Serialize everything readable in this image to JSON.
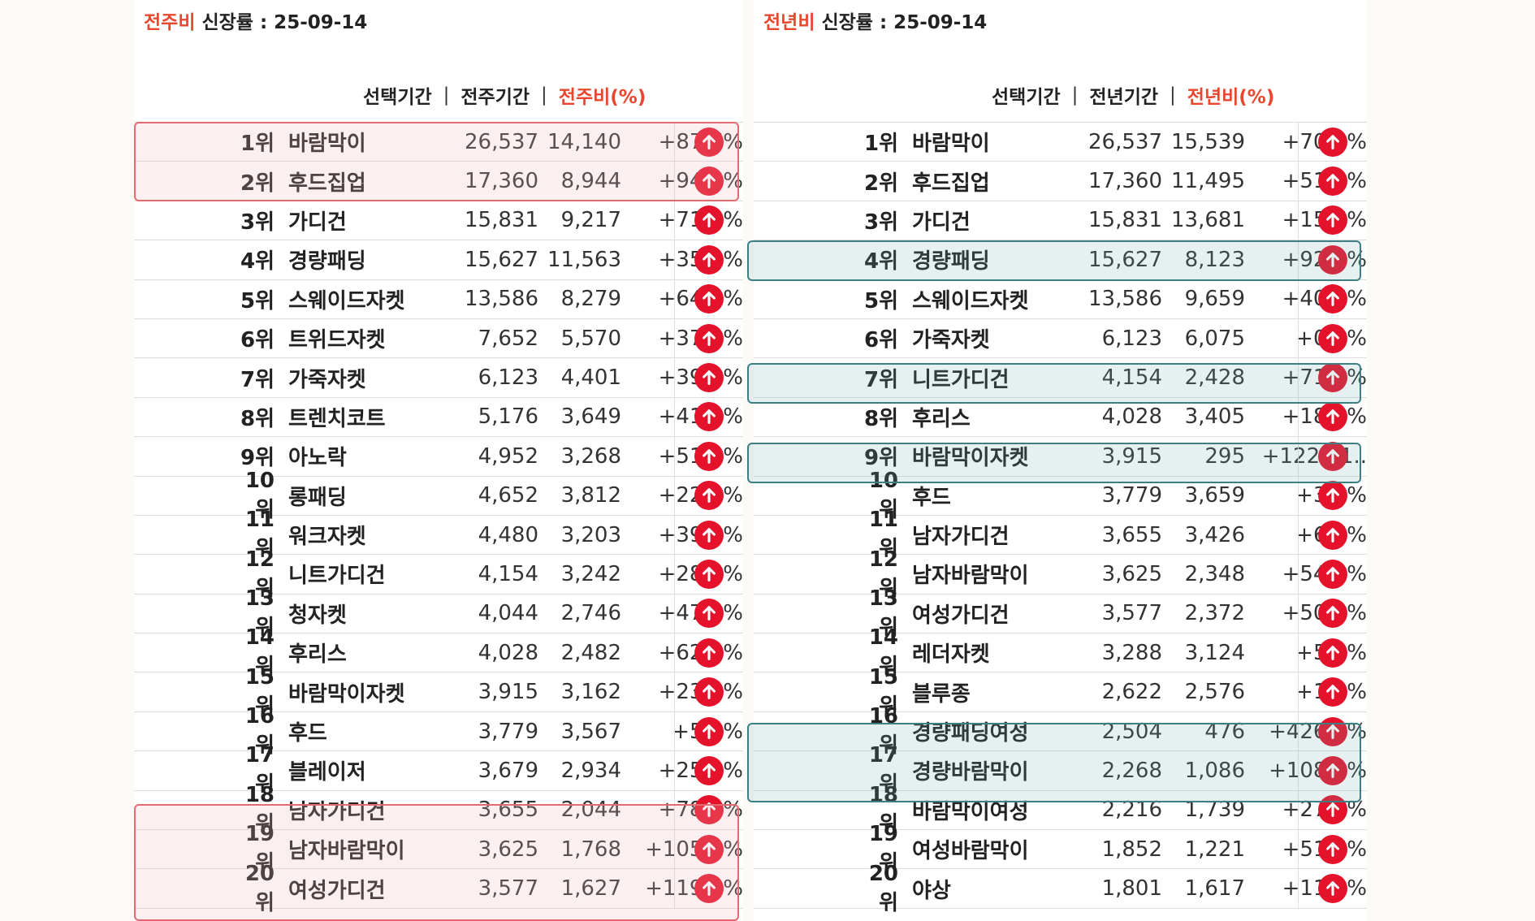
{
  "left": {
    "title_prefix": "전주비",
    "title_rest": " 신장률 : 25-09-14",
    "headers": {
      "cur": "선택기간",
      "prev": "전주기간",
      "pct": "전주비(%)"
    },
    "rows": [
      {
        "rank": "1위",
        "name": "바람막이",
        "cur": "26,537",
        "prev": "14,140",
        "pct": "+87.7%"
      },
      {
        "rank": "2위",
        "name": "후드집업",
        "cur": "17,360",
        "prev": "8,944",
        "pct": "+94.1%"
      },
      {
        "rank": "3위",
        "name": "가디건",
        "cur": "15,831",
        "prev": "9,217",
        "pct": "+71.8%"
      },
      {
        "rank": "4위",
        "name": "경량패딩",
        "cur": "15,627",
        "prev": "11,563",
        "pct": "+35.1%"
      },
      {
        "rank": "5위",
        "name": "스웨이드자켓",
        "cur": "13,586",
        "prev": "8,279",
        "pct": "+64.1%"
      },
      {
        "rank": "6위",
        "name": "트위드자켓",
        "cur": "7,652",
        "prev": "5,570",
        "pct": "+37.4%"
      },
      {
        "rank": "7위",
        "name": "가죽자켓",
        "cur": "6,123",
        "prev": "4,401",
        "pct": "+39.1%"
      },
      {
        "rank": "8위",
        "name": "트렌치코트",
        "cur": "5,176",
        "prev": "3,649",
        "pct": "+41.8%"
      },
      {
        "rank": "9위",
        "name": "아노락",
        "cur": "4,952",
        "prev": "3,268",
        "pct": "+51.5%"
      },
      {
        "rank": "10위",
        "name": "롱패딩",
        "cur": "4,652",
        "prev": "3,812",
        "pct": "+22.0%"
      },
      {
        "rank": "11위",
        "name": "워크자켓",
        "cur": "4,480",
        "prev": "3,203",
        "pct": "+39.9%"
      },
      {
        "rank": "12위",
        "name": "니트가디건",
        "cur": "4,154",
        "prev": "3,242",
        "pct": "+28.1%"
      },
      {
        "rank": "13위",
        "name": "청자켓",
        "cur": "4,044",
        "prev": "2,746",
        "pct": "+47.3%"
      },
      {
        "rank": "14위",
        "name": "후리스",
        "cur": "4,028",
        "prev": "2,482",
        "pct": "+62.3%"
      },
      {
        "rank": "15위",
        "name": "바람막이자켓",
        "cur": "3,915",
        "prev": "3,162",
        "pct": "+23.8%"
      },
      {
        "rank": "16위",
        "name": "후드",
        "cur": "3,779",
        "prev": "3,567",
        "pct": "+5.9%"
      },
      {
        "rank": "17위",
        "name": "블레이저",
        "cur": "3,679",
        "prev": "2,934",
        "pct": "+25.4%"
      },
      {
        "rank": "18위",
        "name": "남자가디건",
        "cur": "3,655",
        "prev": "2,044",
        "pct": "+78.8%"
      },
      {
        "rank": "19위",
        "name": "남자바람막이",
        "cur": "3,625",
        "prev": "1,768",
        "pct": "+105.0%"
      },
      {
        "rank": "20위",
        "name": "여성가디건",
        "cur": "3,577",
        "prev": "1,627",
        "pct": "+119.9%"
      }
    ]
  },
  "right": {
    "title_prefix": "전년비",
    "title_rest": " 신장률 : 25-09-14",
    "headers": {
      "cur": "선택기간",
      "prev": "전년기간",
      "pct": "전년비(%)"
    },
    "rows": [
      {
        "rank": "1위",
        "name": "바람막이",
        "cur": "26,537",
        "prev": "15,539",
        "pct": "+70.8%"
      },
      {
        "rank": "2위",
        "name": "후드집업",
        "cur": "17,360",
        "prev": "11,495",
        "pct": "+51.0%"
      },
      {
        "rank": "3위",
        "name": "가디건",
        "cur": "15,831",
        "prev": "13,681",
        "pct": "+15.7%"
      },
      {
        "rank": "4위",
        "name": "경량패딩",
        "cur": "15,627",
        "prev": "8,123",
        "pct": "+92.4%"
      },
      {
        "rank": "5위",
        "name": "스웨이드자켓",
        "cur": "13,586",
        "prev": "9,659",
        "pct": "+40.7%"
      },
      {
        "rank": "6위",
        "name": "가죽자켓",
        "cur": "6,123",
        "prev": "6,075",
        "pct": "+0.8%"
      },
      {
        "rank": "7위",
        "name": "니트가디건",
        "cur": "4,154",
        "prev": "2,428",
        "pct": "+71.1%"
      },
      {
        "rank": "8위",
        "name": "후리스",
        "cur": "4,028",
        "prev": "3,405",
        "pct": "+18.3%"
      },
      {
        "rank": "9위",
        "name": "바람막이자켓",
        "cur": "3,915",
        "prev": "295",
        "pct": "+1227.1.."
      },
      {
        "rank": "10위",
        "name": "후드",
        "cur": "3,779",
        "prev": "3,659",
        "pct": "+3.3%"
      },
      {
        "rank": "11위",
        "name": "남자가디건",
        "cur": "3,655",
        "prev": "3,426",
        "pct": "+6.7%"
      },
      {
        "rank": "12위",
        "name": "남자바람막이",
        "cur": "3,625",
        "prev": "2,348",
        "pct": "+54.4%"
      },
      {
        "rank": "13위",
        "name": "여성가디건",
        "cur": "3,577",
        "prev": "2,372",
        "pct": "+50.8%"
      },
      {
        "rank": "14위",
        "name": "레더자켓",
        "cur": "3,288",
        "prev": "3,124",
        "pct": "+5.2%"
      },
      {
        "rank": "15위",
        "name": "블루종",
        "cur": "2,622",
        "prev": "2,576",
        "pct": "+1.8%"
      },
      {
        "rank": "16위",
        "name": "경량패딩여성",
        "cur": "2,504",
        "prev": "476",
        "pct": "+426.1%"
      },
      {
        "rank": "17위",
        "name": "경량바람막이",
        "cur": "2,268",
        "prev": "1,086",
        "pct": "+108.8%"
      },
      {
        "rank": "18위",
        "name": "바람막이여성",
        "cur": "2,216",
        "prev": "1,739",
        "pct": "+27.4%"
      },
      {
        "rank": "19위",
        "name": "여성바람막이",
        "cur": "1,852",
        "prev": "1,221",
        "pct": "+51.7%"
      },
      {
        "rank": "20위",
        "name": "야상",
        "cur": "1,801",
        "prev": "1,617",
        "pct": "+11.4%"
      }
    ]
  },
  "icons": {
    "trend": "arrow-up-circle-icon"
  },
  "colors": {
    "accent": "#e8472e",
    "up_icon": "#e4122a",
    "highlight_red": "#e36a72",
    "highlight_teal": "#3d7f83"
  }
}
